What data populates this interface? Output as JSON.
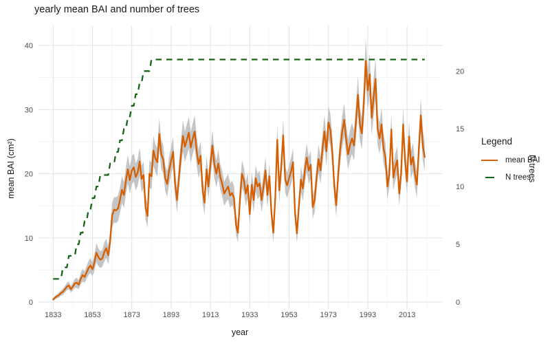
{
  "title": "yearly mean BAI and number of trees",
  "legend": {
    "title": "Legend",
    "items": [
      {
        "label": "mean BAI",
        "style": "solid",
        "color": "#D55E00"
      },
      {
        "label": "N trees",
        "style": "dashed",
        "color": "#166416"
      }
    ]
  },
  "colors": {
    "bai_line": "#D55E00",
    "ntrees_line": "#166416",
    "ribbon": "#C5C5C5",
    "grid_major": "#E3E3E3",
    "grid_minor": "#F1F1F1",
    "tick_text": "#4D4D4D",
    "title_text": "#1A1A1A",
    "background": "#FFFFFF"
  },
  "chart_data": {
    "type": "line",
    "title": "yearly mean BAI and number of trees",
    "xlabel": "year",
    "ylabel_left": "mean BAI (cm²)",
    "ylabel_right": "N trees",
    "grid": true,
    "legend_position": "right",
    "x_start": 1833,
    "x_end": 2022,
    "x_step": 1,
    "xlim": [
      1833,
      2022
    ],
    "ylim_left": [
      0,
      41
    ],
    "ylim_right": [
      0,
      21
    ],
    "x_major_ticks": [
      1833,
      1853,
      1873,
      1893,
      1913,
      1933,
      1953,
      1973,
      1993,
      2013
    ],
    "y_left_ticks": [
      0,
      10,
      20,
      30,
      40
    ],
    "y_right_ticks": [
      0,
      5,
      10,
      15,
      20
    ],
    "series": [
      {
        "name": "mean BAI",
        "axis": "left",
        "color": "#D55E00",
        "linetype": "solid",
        "ribbon_color": "#C5C5C5",
        "values": [
          0.4,
          0.7,
          0.9,
          1.1,
          1.4,
          1.6,
          2.0,
          2.4,
          2.6,
          2.0,
          2.4,
          2.9,
          3.0,
          2.7,
          3.6,
          4.2,
          3.9,
          4.6,
          5.3,
          5.7,
          5.1,
          6.2,
          7.7,
          7.0,
          6.6,
          6.8,
          7.8,
          8.4,
          7.3,
          9.5,
          13.5,
          14.4,
          14.3,
          14.6,
          15.9,
          17.5,
          16.7,
          18.9,
          20.7,
          19.0,
          20.5,
          21.0,
          19.5,
          20.2,
          21.9,
          19.2,
          19.8,
          14.8,
          13.4,
          20.0,
          19.6,
          23.6,
          22.4,
          21.8,
          26.2,
          23.0,
          22.2,
          19.3,
          18.4,
          20.5,
          22.0,
          23.4,
          18.5,
          15.9,
          19.5,
          23.0,
          25.9,
          24.2,
          25.3,
          26.4,
          24.1,
          25.5,
          26.6,
          23.5,
          21.5,
          22.8,
          17.5,
          15.5,
          20.7,
          18.0,
          21.5,
          24.4,
          21.5,
          20.0,
          21.6,
          19.5,
          18.4,
          16.9,
          17.5,
          18.0,
          16.6,
          17.0,
          16.2,
          12.0,
          10.8,
          16.0,
          20.0,
          19.0,
          16.9,
          18.2,
          13.7,
          18.3,
          15.9,
          19.3,
          18.0,
          18.5,
          15.9,
          18.0,
          20.5,
          16.7,
          19.6,
          13.9,
          10.8,
          16.5,
          25.3,
          17.4,
          21.0,
          26.0,
          19.1,
          18.2,
          19.3,
          20.4,
          21.8,
          14.0,
          10.7,
          15.0,
          19.1,
          17.7,
          20.5,
          22.5,
          20.5,
          21.4,
          14.8,
          15.9,
          19.5,
          22.3,
          20.5,
          24.0,
          26.6,
          23.5,
          28.0,
          26.8,
          23.4,
          18.0,
          15.1,
          20.0,
          24.0,
          26.5,
          28.4,
          25.5,
          23.0,
          24.5,
          25.5,
          24.4,
          28.0,
          32.3,
          27.7,
          26.3,
          31.0,
          37.6,
          33.0,
          35.5,
          28.7,
          32.0,
          34.8,
          27.0,
          25.5,
          27.7,
          24.0,
          22.6,
          18.0,
          20.0,
          26.9,
          19.4,
          21.0,
          22.1,
          16.9,
          20.0,
          27.7,
          22.0,
          18.8,
          25.8,
          21.4,
          22.6,
          20.0,
          18.3,
          24.0,
          29.1,
          24.4,
          22.6
        ],
        "ribbon_halfwidth": [
          0.2,
          0.3,
          0.3,
          0.4,
          0.4,
          0.5,
          0.5,
          0.6,
          0.6,
          0.5,
          0.6,
          0.7,
          0.8,
          0.7,
          0.9,
          1.0,
          0.9,
          1.0,
          1.1,
          1.2,
          1.1,
          1.3,
          1.5,
          1.4,
          1.3,
          1.3,
          1.5,
          1.5,
          1.4,
          1.6,
          1.9,
          2.0,
          2.0,
          2.0,
          2.0,
          2.1,
          2.0,
          2.1,
          2.2,
          2.1,
          2.2,
          2.2,
          2.1,
          2.1,
          2.2,
          2.1,
          2.1,
          1.9,
          1.8,
          2.1,
          2.1,
          2.3,
          2.2,
          2.2,
          2.5,
          2.3,
          2.2,
          2.0,
          2.0,
          2.1,
          2.2,
          2.3,
          2.0,
          1.9,
          2.0,
          2.3,
          2.5,
          2.4,
          2.4,
          2.5,
          2.4,
          2.4,
          2.5,
          2.3,
          2.2,
          2.3,
          2.0,
          1.9,
          2.1,
          2.0,
          2.2,
          2.4,
          2.2,
          2.1,
          2.2,
          2.0,
          2.0,
          1.9,
          1.9,
          2.0,
          1.9,
          1.9,
          1.9,
          1.6,
          1.5,
          1.9,
          2.1,
          2.0,
          1.9,
          2.0,
          1.7,
          2.0,
          1.9,
          2.0,
          2.0,
          2.0,
          1.9,
          2.0,
          2.1,
          1.9,
          2.0,
          1.7,
          1.5,
          1.9,
          2.4,
          1.9,
          2.2,
          2.5,
          2.0,
          2.0,
          2.0,
          2.1,
          2.2,
          1.7,
          1.5,
          1.8,
          2.0,
          1.9,
          2.1,
          2.2,
          2.1,
          2.2,
          1.8,
          1.9,
          2.0,
          2.2,
          2.1,
          2.3,
          2.5,
          2.3,
          2.6,
          2.5,
          2.3,
          2.0,
          1.8,
          2.1,
          2.3,
          2.5,
          2.6,
          2.4,
          2.3,
          2.4,
          2.4,
          2.4,
          2.6,
          3.0,
          2.6,
          2.5,
          2.9,
          3.4,
          3.1,
          3.3,
          2.7,
          3.0,
          3.2,
          2.5,
          2.4,
          2.6,
          2.3,
          2.2,
          2.0,
          2.1,
          2.5,
          2.0,
          2.1,
          2.2,
          1.9,
          2.1,
          2.6,
          2.2,
          2.0,
          2.4,
          2.2,
          2.2,
          2.1,
          2.0,
          2.3,
          2.7,
          2.4,
          2.2
        ]
      },
      {
        "name": "N trees",
        "axis": "right",
        "color": "#166416",
        "linetype": "dashed",
        "steps": [
          [
            1833,
            2
          ],
          [
            1838,
            3
          ],
          [
            1841,
            4
          ],
          [
            1845,
            5
          ],
          [
            1847,
            6
          ],
          [
            1849,
            7
          ],
          [
            1851,
            8
          ],
          [
            1853,
            9
          ],
          [
            1855,
            10
          ],
          [
            1857,
            11
          ],
          [
            1862,
            12
          ],
          [
            1865,
            13
          ],
          [
            1867,
            14
          ],
          [
            1869,
            15
          ],
          [
            1871,
            16
          ],
          [
            1873,
            17
          ],
          [
            1875,
            18
          ],
          [
            1877,
            19
          ],
          [
            1879,
            20
          ],
          [
            1883,
            21
          ]
        ]
      }
    ]
  }
}
